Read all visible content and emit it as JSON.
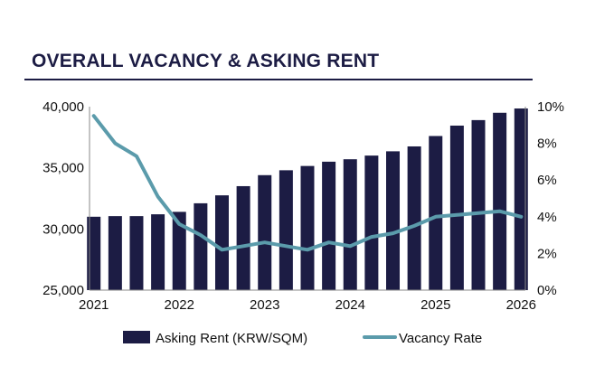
{
  "chart_data": {
    "type": "bar",
    "title": "OVERALL VACANCY & ASKING RENT",
    "x_ticks": [
      "2021",
      "2022",
      "2023",
      "2024",
      "2025",
      "2026"
    ],
    "y_left": {
      "ylim": [
        25000,
        40000
      ],
      "ticks": [
        "25,000",
        "30,000",
        "35,000",
        "40,000"
      ]
    },
    "y_right": {
      "ylim": [
        0,
        10
      ],
      "unit": "%",
      "ticks": [
        "0%",
        "2%",
        "4%",
        "6%",
        "8%",
        "10%"
      ]
    },
    "legend_position": "bottom",
    "grid": false,
    "series": [
      {
        "name": "Asking Rent (KRW/SQM)",
        "type": "bar",
        "axis": "left",
        "color": "#1c1c44",
        "x": [
          2021.0,
          2021.25,
          2021.5,
          2021.75,
          2022.0,
          2022.25,
          2022.5,
          2022.75,
          2023.0,
          2023.25,
          2023.5,
          2023.75,
          2024.0,
          2024.25,
          2024.5,
          2024.75,
          2025.0,
          2025.25,
          2025.5,
          2025.75,
          2026.0
        ],
        "values": [
          31000,
          31050,
          31050,
          31200,
          31400,
          32100,
          32750,
          33500,
          34400,
          34800,
          35150,
          35500,
          35700,
          36000,
          36350,
          36750,
          37600,
          38450,
          38900,
          39500,
          39850
        ]
      },
      {
        "name": "Vacancy Rate",
        "type": "line",
        "axis": "right",
        "color": "#5b9bab",
        "x": [
          2021.0,
          2021.25,
          2021.5,
          2021.75,
          2022.0,
          2022.25,
          2022.5,
          2022.75,
          2023.0,
          2023.25,
          2023.5,
          2023.75,
          2024.0,
          2024.25,
          2024.5,
          2024.75,
          2025.0,
          2025.25,
          2025.5,
          2025.75,
          2026.0
        ],
        "values": [
          9.5,
          8.0,
          7.3,
          5.1,
          3.6,
          3.0,
          2.2,
          2.4,
          2.6,
          2.4,
          2.2,
          2.6,
          2.4,
          2.9,
          3.1,
          3.5,
          4.0,
          4.1,
          4.2,
          4.3,
          4.0
        ]
      }
    ]
  }
}
